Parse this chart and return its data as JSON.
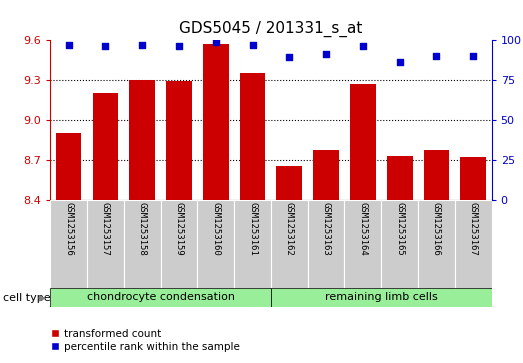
{
  "title": "GDS5045 / 201331_s_at",
  "samples": [
    "GSM1253156",
    "GSM1253157",
    "GSM1253158",
    "GSM1253159",
    "GSM1253160",
    "GSM1253161",
    "GSM1253162",
    "GSM1253163",
    "GSM1253164",
    "GSM1253165",
    "GSM1253166",
    "GSM1253167"
  ],
  "bar_values": [
    8.9,
    9.2,
    9.3,
    9.29,
    9.57,
    9.35,
    8.65,
    8.77,
    9.27,
    8.73,
    8.77,
    8.72
  ],
  "percentile_values": [
    97,
    96,
    97,
    96,
    99,
    97,
    89,
    91,
    96,
    86,
    90,
    90
  ],
  "bar_color": "#cc0000",
  "percentile_color": "#0000cc",
  "ylim_left": [
    8.4,
    9.6
  ],
  "ylim_right": [
    0,
    100
  ],
  "yticks_left": [
    8.4,
    8.7,
    9.0,
    9.3,
    9.6
  ],
  "yticks_right": [
    0,
    25,
    50,
    75,
    100
  ],
  "hlines": [
    8.7,
    9.0,
    9.3
  ],
  "group1_label": "chondrocyte condensation",
  "group2_label": "remaining limb cells",
  "group1_count": 6,
  "group2_count": 6,
  "cell_type_label": "cell type",
  "legend_bar_label": "transformed count",
  "legend_pct_label": "percentile rank within the sample",
  "background_color": "#ffffff",
  "tick_area_color": "#cccccc",
  "group1_color": "#99ee99",
  "group2_color": "#99ee99",
  "title_fontsize": 11,
  "tick_fontsize": 8,
  "label_fontsize": 8,
  "sample_fontsize": 6.5
}
